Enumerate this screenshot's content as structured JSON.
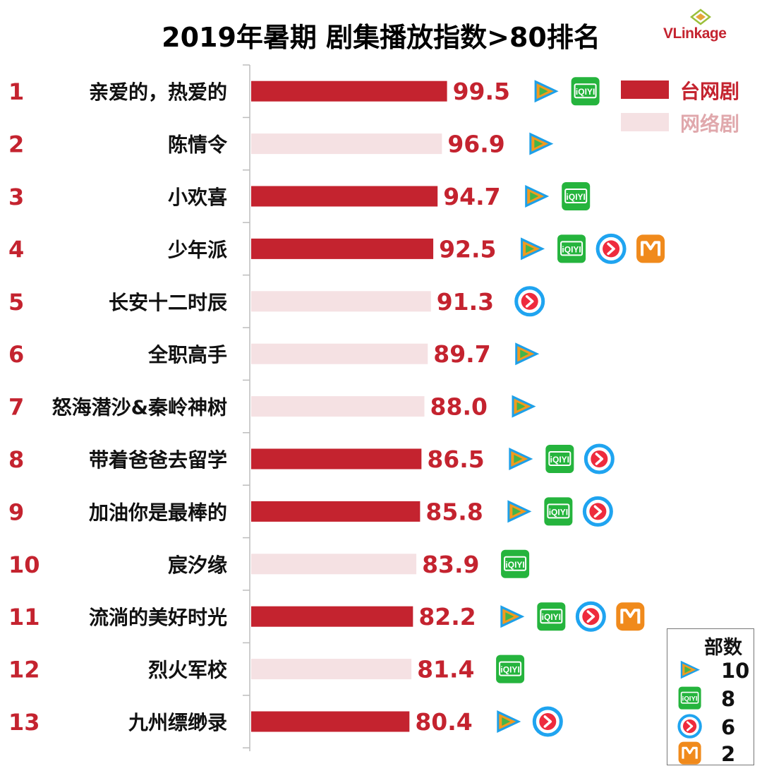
{
  "title": "2019年暑期 剧集播放指数>80排名",
  "brand": {
    "name_upper": "VLink",
    "name_lower": "age"
  },
  "colors": {
    "tv": "#c4232f",
    "web": "#f5e1e3",
    "accent": "#c4232f"
  },
  "legend": {
    "items": [
      {
        "key": "tv",
        "label": "台网剧",
        "color": "#c4232f",
        "label_color": "#c4232f"
      },
      {
        "key": "web",
        "label": "网络剧",
        "color": "#f5e1e3",
        "label_color": "#e0a8ac"
      }
    ]
  },
  "chart_data": {
    "type": "bar",
    "orientation": "horizontal",
    "title": "2019年暑期 剧集播放指数>80排名",
    "xlim": [
      0,
      100
    ],
    "categories": [
      "亲爱的，热爱的",
      "陈情令",
      "小欢喜",
      "少年派",
      "长安十二时辰",
      "全职高手",
      "怒海潜沙&秦岭神树",
      "带着爸爸去留学",
      "加油你是最棒的",
      "宸汐缘",
      "流淌的美好时光",
      "烈火军校",
      "九州缥缈录"
    ],
    "ranks": [
      "1",
      "2",
      "3",
      "4",
      "5",
      "6",
      "7",
      "8",
      "9",
      "10",
      "11",
      "12",
      "13"
    ],
    "values": [
      99.5,
      96.9,
      94.7,
      92.5,
      91.3,
      89.7,
      88.0,
      86.5,
      85.8,
      83.9,
      82.2,
      81.4,
      80.4
    ],
    "value_labels": [
      "99.5",
      "96.9",
      "94.7",
      "92.5",
      "91.3",
      "89.7",
      "88.0",
      "86.5",
      "85.8",
      "83.9",
      "82.2",
      "81.4",
      "80.4"
    ],
    "types": [
      "tv",
      "web",
      "tv",
      "tv",
      "web",
      "web",
      "web",
      "tv",
      "tv",
      "web",
      "tv",
      "web",
      "tv"
    ],
    "platforms": [
      [
        "tencent",
        "iqiyi"
      ],
      [
        "tencent"
      ],
      [
        "tencent",
        "iqiyi"
      ],
      [
        "tencent",
        "iqiyi",
        "youku",
        "mango"
      ],
      [
        "youku"
      ],
      [
        "tencent"
      ],
      [
        "tencent"
      ],
      [
        "tencent",
        "iqiyi",
        "youku"
      ],
      [
        "tencent",
        "iqiyi",
        "youku"
      ],
      [
        "iqiyi"
      ],
      [
        "tencent",
        "iqiyi",
        "youku",
        "mango"
      ],
      [
        "iqiyi"
      ],
      [
        "tencent",
        "youku"
      ]
    ]
  },
  "platform_counts": {
    "title": "部数",
    "items": [
      {
        "platform": "tencent",
        "icon": "tencent-video-icon",
        "count": "10"
      },
      {
        "platform": "iqiyi",
        "icon": "iqiyi-icon",
        "count": "8"
      },
      {
        "platform": "youku",
        "icon": "youku-icon",
        "count": "6"
      },
      {
        "platform": "mango",
        "icon": "mango-tv-icon",
        "count": "2"
      }
    ]
  }
}
